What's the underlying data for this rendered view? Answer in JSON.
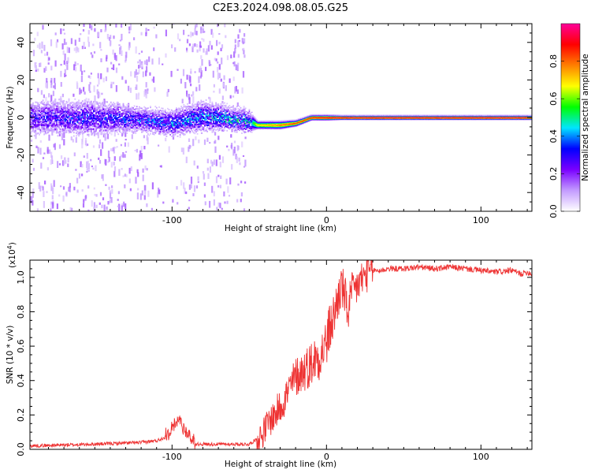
{
  "title": "C2E3.2024.098.08.05.G25",
  "chart_data": [
    {
      "type": "heatmap",
      "xlabel": "Height of straight line (km)",
      "ylabel": "Frequency (Hz)",
      "xlim": [
        -192,
        133
      ],
      "ylim": [
        -50,
        50
      ],
      "xticks": [
        -100,
        0,
        100
      ],
      "xtick_labels": [
        "-100",
        "0",
        "100"
      ],
      "yticks": [
        -40,
        -20,
        0,
        20,
        40
      ],
      "ytick_labels": [
        "-40",
        "-20",
        "0",
        "20",
        "40"
      ],
      "colorbar": {
        "label": "Normalized spectral amplitude",
        "range": [
          0,
          1
        ],
        "ticks": [
          0.0,
          0.2,
          0.4,
          0.6,
          0.8
        ],
        "tick_labels": [
          "0.0",
          "0.2",
          "0.4",
          "0.6",
          "0.8"
        ],
        "colormap": [
          "#ffffff",
          "#c39bff",
          "#7a00ff",
          "#0000ff",
          "#00e5ff",
          "#00ff00",
          "#ffff00",
          "#ff7f00",
          "#ff0000",
          "#ff0099"
        ]
      },
      "ridge": [
        {
          "x": -192,
          "f": 0,
          "amp": 0.25,
          "spread": 7
        },
        {
          "x": -150,
          "f": 0,
          "amp": 0.28,
          "spread": 7
        },
        {
          "x": -120,
          "f": -1,
          "amp": 0.3,
          "spread": 5
        },
        {
          "x": -100,
          "f": -3,
          "amp": 0.35,
          "spread": 5
        },
        {
          "x": -80,
          "f": 1,
          "amp": 0.35,
          "spread": 6
        },
        {
          "x": -50,
          "f": -2,
          "amp": 0.4,
          "spread": 4
        },
        {
          "x": -45,
          "f": -4,
          "amp": 0.7,
          "spread": 1.5
        },
        {
          "x": -30,
          "f": -4,
          "amp": 0.8,
          "spread": 1.5
        },
        {
          "x": -20,
          "f": -3,
          "amp": 0.85,
          "spread": 1.2
        },
        {
          "x": -10,
          "f": 0,
          "amp": 0.9,
          "spread": 1
        },
        {
          "x": 0,
          "f": 0,
          "amp": 0.95,
          "spread": 1
        },
        {
          "x": 10,
          "f": 0,
          "amp": 1.0,
          "spread": 0.8
        },
        {
          "x": 133,
          "f": 0,
          "amp": 1.0,
          "spread": 0.8
        }
      ],
      "noise_regions": [
        {
          "x0": -192,
          "x1": -115,
          "density": 0.5
        },
        {
          "x0": -115,
          "x1": -92,
          "density": 0.15
        },
        {
          "x0": -92,
          "x1": -52,
          "density": 0.45
        }
      ]
    },
    {
      "type": "line",
      "xlabel": "Height of straight line (km)",
      "ylabel": "SNR (10 * v/v)",
      "multiplier_label": "(x10",
      "multiplier_exp": "4",
      "multiplier_close": ")",
      "xlim": [
        -192,
        133
      ],
      "ylim": [
        0,
        1.1
      ],
      "xticks": [
        -100,
        0,
        100
      ],
      "xtick_labels": [
        "-100",
        "0",
        "100"
      ],
      "yticks": [
        0.0,
        0.2,
        0.4,
        0.6,
        0.8,
        1.0
      ],
      "ytick_labels": [
        "0.0",
        "0.2",
        "0.4",
        "0.6",
        "0.8",
        "1.0"
      ],
      "color": "#ee3333",
      "series": {
        "x": [
          -192,
          -150,
          -120,
          -110,
          -102,
          -98,
          -95,
          -92,
          -88,
          -85,
          -60,
          -50,
          -42,
          -38,
          -32,
          -28,
          -24,
          -20,
          -16,
          -12,
          -8,
          -4,
          0,
          2,
          4,
          6,
          8,
          10,
          12,
          14,
          16,
          18,
          20,
          22,
          24,
          26,
          28,
          30,
          35,
          40,
          50,
          60,
          70,
          80,
          90,
          100,
          110,
          120,
          126,
          130,
          133
        ],
        "y": [
          0.02,
          0.03,
          0.04,
          0.05,
          0.08,
          0.13,
          0.16,
          0.1,
          0.05,
          0.03,
          0.03,
          0.03,
          0.08,
          0.15,
          0.22,
          0.28,
          0.35,
          0.42,
          0.45,
          0.48,
          0.52,
          0.55,
          0.62,
          0.7,
          0.75,
          0.82,
          0.9,
          0.95,
          0.88,
          0.8,
          0.9,
          0.92,
          0.95,
          0.98,
          1.0,
          1.02,
          1.03,
          1.04,
          1.04,
          1.05,
          1.05,
          1.06,
          1.05,
          1.06,
          1.05,
          1.04,
          1.03,
          1.04,
          1.02,
          1.03,
          1.02
        ]
      }
    }
  ]
}
